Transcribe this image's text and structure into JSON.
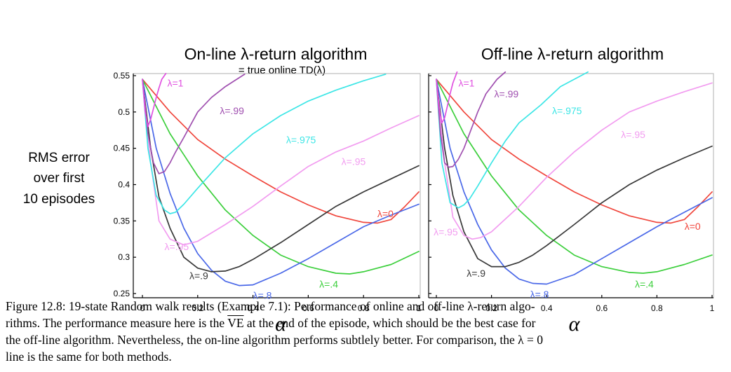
{
  "colors": {
    "lambda_0": "#f0463c",
    "lambda_04": "#3ccf3c",
    "lambda_08": "#4a68e8",
    "lambda_09": "#383838",
    "lambda_095": "#f29cf0",
    "lambda_0975": "#3de6e6",
    "lambda_099": "#a050b0",
    "lambda_1": "#e050e0"
  },
  "ylabel": [
    "RMS error",
    "over first",
    "10 episodes"
  ],
  "xlabel": "α",
  "chart_data": [
    {
      "type": "line",
      "title": "On-line λ-return algorithm",
      "subtitle": "= true online TD(λ)",
      "xlim": [
        0,
        1
      ],
      "ylim": [
        0.25,
        0.55
      ],
      "xticks": [
        "0",
        "0.2",
        "0.4",
        "0.6",
        "0.8",
        "1"
      ],
      "yticks": [
        "0.25",
        "0.3",
        "0.35",
        "0.4",
        "0.45",
        "0.5",
        "0.55"
      ],
      "series": [
        {
          "name": "λ=0",
          "color_key": "lambda_0",
          "x": [
            0,
            0.1,
            0.2,
            0.3,
            0.4,
            0.5,
            0.6,
            0.7,
            0.8,
            0.85,
            0.9,
            0.95,
            1.0
          ],
          "y": [
            0.545,
            0.5,
            0.462,
            0.435,
            0.412,
            0.39,
            0.372,
            0.357,
            0.348,
            0.347,
            0.352,
            0.37,
            0.39
          ]
        },
        {
          "name": "λ=.4",
          "color_key": "lambda_04",
          "x": [
            0,
            0.1,
            0.2,
            0.3,
            0.4,
            0.5,
            0.6,
            0.7,
            0.75,
            0.8,
            0.9,
            1.0
          ],
          "y": [
            0.545,
            0.47,
            0.412,
            0.365,
            0.33,
            0.303,
            0.287,
            0.278,
            0.277,
            0.28,
            0.29,
            0.308
          ]
        },
        {
          "name": "λ=.8",
          "color_key": "lambda_08",
          "x": [
            0,
            0.05,
            0.1,
            0.15,
            0.2,
            0.25,
            0.3,
            0.35,
            0.4,
            0.5,
            0.6,
            0.7,
            0.8,
            0.9,
            1.0
          ],
          "y": [
            0.545,
            0.45,
            0.388,
            0.34,
            0.305,
            0.282,
            0.267,
            0.261,
            0.262,
            0.278,
            0.298,
            0.32,
            0.342,
            0.358,
            0.373
          ]
        },
        {
          "name": "λ=.9",
          "color_key": "lambda_09",
          "x": [
            0,
            0.03,
            0.06,
            0.1,
            0.15,
            0.2,
            0.25,
            0.3,
            0.35,
            0.4,
            0.5,
            0.6,
            0.7,
            0.8,
            0.9,
            1.0
          ],
          "y": [
            0.545,
            0.45,
            0.383,
            0.34,
            0.3,
            0.285,
            0.28,
            0.281,
            0.287,
            0.297,
            0.32,
            0.345,
            0.37,
            0.39,
            0.408,
            0.426
          ]
        },
        {
          "name": "λ=.95",
          "color_key": "lambda_095",
          "x": [
            0,
            0.03,
            0.06,
            0.1,
            0.15,
            0.2,
            0.3,
            0.4,
            0.5,
            0.6,
            0.7,
            0.8,
            0.9,
            1.0
          ],
          "y": [
            0.545,
            0.43,
            0.35,
            0.325,
            0.317,
            0.322,
            0.345,
            0.37,
            0.398,
            0.425,
            0.445,
            0.46,
            0.478,
            0.495
          ]
        },
        {
          "name": "λ=.975",
          "color_key": "lambda_0975",
          "x": [
            0,
            0.02,
            0.05,
            0.08,
            0.1,
            0.12,
            0.15,
            0.2,
            0.3,
            0.4,
            0.5,
            0.6,
            0.7,
            0.8,
            0.88
          ],
          "y": [
            0.545,
            0.45,
            0.385,
            0.365,
            0.36,
            0.362,
            0.373,
            0.395,
            0.437,
            0.47,
            0.495,
            0.515,
            0.53,
            0.543,
            0.552
          ]
        },
        {
          "name": "λ=.99",
          "color_key": "lambda_099",
          "x": [
            0,
            0.02,
            0.04,
            0.06,
            0.08,
            0.1,
            0.12,
            0.15,
            0.2,
            0.25,
            0.3,
            0.37
          ],
          "y": [
            0.545,
            0.47,
            0.43,
            0.415,
            0.418,
            0.43,
            0.445,
            0.465,
            0.5,
            0.52,
            0.535,
            0.552
          ]
        },
        {
          "name": "λ=1",
          "color_key": "lambda_1",
          "x": [
            0,
            0.01,
            0.02,
            0.03,
            0.04,
            0.05,
            0.06,
            0.07,
            0.085
          ],
          "y": [
            0.545,
            0.5,
            0.48,
            0.49,
            0.505,
            0.52,
            0.533,
            0.545,
            0.553
          ]
        }
      ],
      "annotations": [
        {
          "text": "λ=1",
          "x": 0.09,
          "y": 0.535,
          "color_key": "lambda_1"
        },
        {
          "text": "λ=.99",
          "x": 0.28,
          "y": 0.497,
          "color_key": "lambda_099"
        },
        {
          "text": "λ=.975",
          "x": 0.52,
          "y": 0.457,
          "color_key": "lambda_0975"
        },
        {
          "text": "λ=.95",
          "x": 0.72,
          "y": 0.427,
          "color_key": "lambda_095"
        },
        {
          "text": "λ=0",
          "x": 0.85,
          "y": 0.355,
          "color_key": "lambda_0"
        },
        {
          "text": "λ=.95",
          "x": 0.08,
          "y": 0.31,
          "color_key": "lambda_095"
        },
        {
          "text": "λ=.9",
          "x": 0.17,
          "y": 0.27,
          "color_key": "lambda_09"
        },
        {
          "text": "λ=.4",
          "x": 0.64,
          "y": 0.258,
          "color_key": "lambda_04"
        },
        {
          "text": "λ=.8",
          "x": 0.4,
          "y": 0.243,
          "color_key": "lambda_08"
        }
      ]
    },
    {
      "type": "line",
      "title": "Off-line λ-return algorithm",
      "subtitle": "",
      "xlim": [
        0,
        1
      ],
      "ylim": [
        0.25,
        0.55
      ],
      "xticks": [
        "0",
        "0.2",
        "0.4",
        "0.6",
        "0.8",
        "1"
      ],
      "yticks": [],
      "series": [
        {
          "name": "λ=0",
          "color_key": "lambda_0",
          "x": [
            0,
            0.1,
            0.2,
            0.3,
            0.4,
            0.5,
            0.6,
            0.7,
            0.8,
            0.85,
            0.9,
            0.95,
            1.0
          ],
          "y": [
            0.545,
            0.5,
            0.462,
            0.435,
            0.412,
            0.39,
            0.372,
            0.357,
            0.348,
            0.347,
            0.352,
            0.37,
            0.39
          ]
        },
        {
          "name": "λ=.4",
          "color_key": "lambda_04",
          "x": [
            0,
            0.1,
            0.2,
            0.3,
            0.4,
            0.5,
            0.6,
            0.7,
            0.75,
            0.8,
            0.9,
            1.0
          ],
          "y": [
            0.545,
            0.47,
            0.412,
            0.365,
            0.33,
            0.303,
            0.287,
            0.279,
            0.278,
            0.28,
            0.29,
            0.303
          ]
        },
        {
          "name": "λ=.8",
          "color_key": "lambda_08",
          "x": [
            0,
            0.05,
            0.1,
            0.15,
            0.2,
            0.25,
            0.3,
            0.35,
            0.4,
            0.5,
            0.6,
            0.7,
            0.8,
            0.9,
            1.0
          ],
          "y": [
            0.545,
            0.45,
            0.39,
            0.345,
            0.31,
            0.285,
            0.27,
            0.264,
            0.263,
            0.276,
            0.298,
            0.32,
            0.342,
            0.362,
            0.382
          ]
        },
        {
          "name": "λ=.9",
          "color_key": "lambda_09",
          "x": [
            0,
            0.03,
            0.06,
            0.1,
            0.15,
            0.2,
            0.25,
            0.3,
            0.35,
            0.4,
            0.5,
            0.6,
            0.7,
            0.8,
            0.9,
            1.0
          ],
          "y": [
            0.545,
            0.45,
            0.385,
            0.335,
            0.298,
            0.287,
            0.287,
            0.293,
            0.303,
            0.316,
            0.345,
            0.375,
            0.4,
            0.42,
            0.437,
            0.453
          ]
        },
        {
          "name": "λ=.95",
          "color_key": "lambda_095",
          "x": [
            0,
            0.03,
            0.06,
            0.1,
            0.13,
            0.16,
            0.2,
            0.3,
            0.4,
            0.5,
            0.6,
            0.7,
            0.8,
            0.9,
            1.0
          ],
          "y": [
            0.545,
            0.43,
            0.355,
            0.33,
            0.325,
            0.327,
            0.335,
            0.37,
            0.41,
            0.445,
            0.475,
            0.5,
            0.515,
            0.528,
            0.54
          ]
        },
        {
          "name": "λ=.975",
          "color_key": "lambda_0975",
          "x": [
            0,
            0.02,
            0.05,
            0.08,
            0.1,
            0.12,
            0.15,
            0.2,
            0.25,
            0.3,
            0.38,
            0.45,
            0.55
          ],
          "y": [
            0.545,
            0.43,
            0.375,
            0.368,
            0.372,
            0.38,
            0.398,
            0.43,
            0.46,
            0.485,
            0.51,
            0.535,
            0.555
          ]
        },
        {
          "name": "λ=.99",
          "color_key": "lambda_099",
          "x": [
            0,
            0.015,
            0.03,
            0.045,
            0.06,
            0.08,
            0.1,
            0.12,
            0.15,
            0.18,
            0.22,
            0.25
          ],
          "y": [
            0.545,
            0.47,
            0.43,
            0.424,
            0.425,
            0.435,
            0.45,
            0.47,
            0.5,
            0.525,
            0.545,
            0.555
          ]
        },
        {
          "name": "λ=1",
          "color_key": "lambda_1",
          "x": [
            0,
            0.01,
            0.02,
            0.03,
            0.04,
            0.05,
            0.06,
            0.075
          ],
          "y": [
            0.545,
            0.505,
            0.485,
            0.492,
            0.508,
            0.525,
            0.54,
            0.555
          ]
        }
      ],
      "annotations": [
        {
          "text": "λ=1",
          "x": 0.08,
          "y": 0.535,
          "color_key": "lambda_1"
        },
        {
          "text": "λ=.99",
          "x": 0.21,
          "y": 0.52,
          "color_key": "lambda_099"
        },
        {
          "text": "λ=.975",
          "x": 0.42,
          "y": 0.497,
          "color_key": "lambda_0975"
        },
        {
          "text": "λ=.95",
          "x": 0.67,
          "y": 0.464,
          "color_key": "lambda_095"
        },
        {
          "text": "λ=0",
          "x": 0.9,
          "y": 0.338,
          "color_key": "lambda_0"
        },
        {
          "text": "λ=.95",
          "x": -0.01,
          "y": 0.33,
          "color_key": "lambda_095"
        },
        {
          "text": "λ=.9",
          "x": 0.11,
          "y": 0.273,
          "color_key": "lambda_09"
        },
        {
          "text": "λ=.4",
          "x": 0.72,
          "y": 0.258,
          "color_key": "lambda_04"
        },
        {
          "text": "λ=.8",
          "x": 0.34,
          "y": 0.244,
          "color_key": "lambda_08"
        }
      ]
    }
  ],
  "caption": {
    "line1": "Figure 12.8: 19-state Random walk results (Example 7.1): Performance of online and off-line λ-return algo-",
    "line2_pre": "rithms. The performance measure here is the ",
    "line2_ve": "VE",
    "line2_post": " at the end of the episode, which should be the best case for",
    "line3": "the off-line algorithm. Nevertheless, the on-line algorithm performs subtlely better. For comparison, the λ = 0",
    "line4": "line is the same for both methods."
  }
}
